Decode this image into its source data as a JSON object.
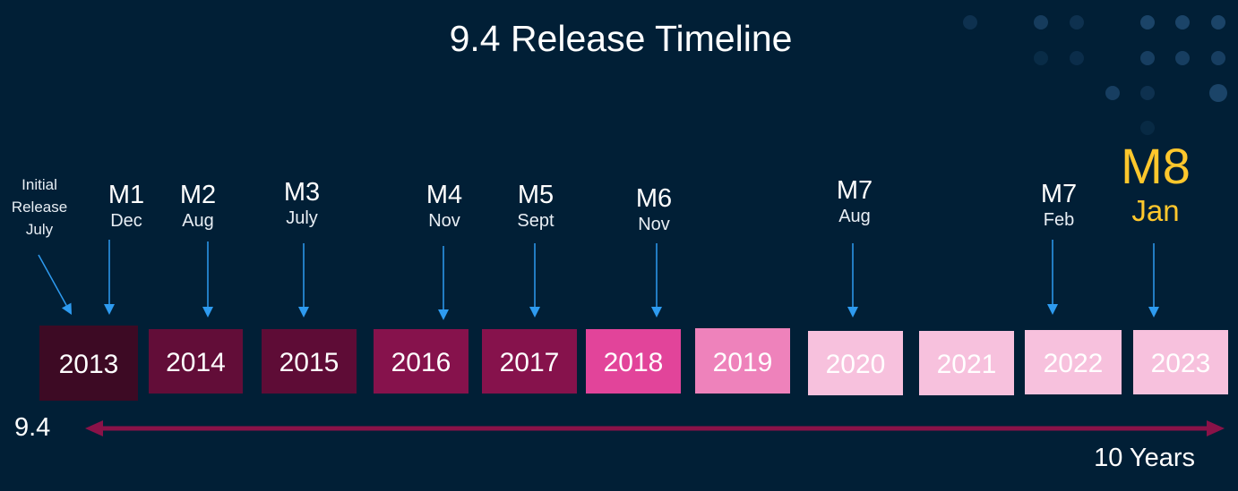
{
  "title": "9.4 Release Timeline",
  "colors": {
    "background": "#011f36",
    "arrow": "#2e9bf0",
    "timeline": "#8a1248",
    "highlight": "#ffc72c",
    "dots": "#1b4468"
  },
  "milestones": [
    {
      "lines": [
        "Initial",
        "Release",
        "July"
      ],
      "code": "",
      "month": ""
    },
    {
      "code": "M1",
      "month": "Dec"
    },
    {
      "code": "M2",
      "month": "Aug"
    },
    {
      "code": "M3",
      "month": "July"
    },
    {
      "code": "M4",
      "month": "Nov"
    },
    {
      "code": "M5",
      "month": "Sept"
    },
    {
      "code": "M6",
      "month": "Nov"
    },
    {
      "code": "M7",
      "month": "Aug"
    },
    {
      "code": "M7",
      "month": "Feb"
    },
    {
      "code": "M8",
      "month": "Jan",
      "highlight": true
    }
  ],
  "years": [
    {
      "label": "2013",
      "color": "#3d0a24"
    },
    {
      "label": "2014",
      "color": "#620d38"
    },
    {
      "label": "2015",
      "color": "#5e0c36"
    },
    {
      "label": "2016",
      "color": "#86124c"
    },
    {
      "label": "2017",
      "color": "#86124c"
    },
    {
      "label": "2018",
      "color": "#e2449a"
    },
    {
      "label": "2019",
      "color": "#ee82bb"
    },
    {
      "label": "2020",
      "color": "#f7c1dd"
    },
    {
      "label": "2021",
      "color": "#f7c1dd"
    },
    {
      "label": "2022",
      "color": "#f7c1dd"
    },
    {
      "label": "2023",
      "color": "#f7c1dd"
    }
  ],
  "timeline": {
    "start_label": "9.4",
    "duration_label": "10 Years"
  }
}
